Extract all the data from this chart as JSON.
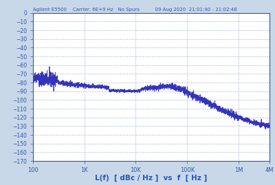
{
  "title": "Agilent E5500    Carrier: 6E+9 Hz   No Spurs          09 Aug 2020  21:01:40 - 21:02:48",
  "xlabel": "L(f)  [ dBc / Hz ]  vs  f  [ Hz ]",
  "xlim_log": [
    100,
    4000000
  ],
  "ylim": [
    -170,
    0
  ],
  "yticks": [
    0,
    -10,
    -20,
    -30,
    -40,
    -50,
    -60,
    -70,
    -80,
    -90,
    -100,
    -110,
    -120,
    -130,
    -140,
    -150,
    -160,
    -170
  ],
  "xtick_labels": [
    "100",
    "1K",
    "10K",
    "100K",
    "1M",
    "4M"
  ],
  "xtick_vals": [
    100,
    1000,
    10000,
    100000,
    1000000,
    4000000
  ],
  "fig_bg_color": "#c8d8e8",
  "plot_bg_color": "#ffffff",
  "line_color": "#3333bb",
  "grid_color": "#8899cc",
  "title_color": "#3355aa",
  "xlabel_color": "#2255bb",
  "tick_color": "#3355aa",
  "spine_color": "#3355aa"
}
